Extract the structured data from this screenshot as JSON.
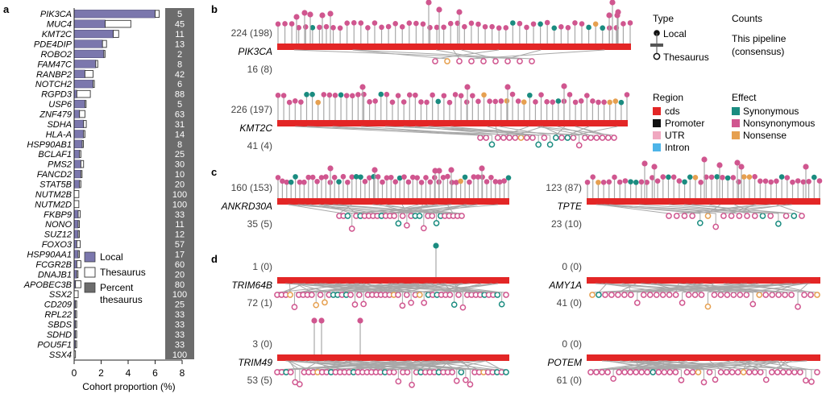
{
  "colors": {
    "local_bar": "#7b77ad",
    "percent_bg": "#6c6c6c",
    "cds": "#e32626",
    "promoter": "#111111",
    "utr": "#f0a8c0",
    "intron": "#4db4e8",
    "synonymous": "#1a8c80",
    "nonsynonymous": "#d0568f",
    "nonsense": "#e6a050",
    "stem": "#a8a8a8"
  },
  "panel_labels": {
    "a": "a",
    "b": "b",
    "c": "c",
    "d": "d"
  },
  "chart_data": [
    {
      "type": "bar",
      "panel": "a",
      "xlabel": "Cohort proportion (%)",
      "xlim": [
        0,
        8
      ],
      "xticks": [
        "0",
        "2",
        "4",
        "6",
        "8"
      ],
      "categories": [
        "PIK3CA",
        "MUC4",
        "KMT2C",
        "PDE4DIP",
        "ROBO2",
        "FAM47C",
        "RANBP2",
        "NOTCH2",
        "RGPD3",
        "USP6",
        "ZNF479",
        "SDHA",
        "HLA-A",
        "HSP90AB1",
        "BCLAF1",
        "PMS2",
        "FANCD2",
        "STAT5B",
        "NUTM2B",
        "NUTM2D",
        "FKBP9",
        "NONO",
        "SUZ12",
        "FOXO3",
        "HSP90AA1",
        "FCGR2B",
        "DNAJB1",
        "APOBEC3B",
        "SSX2",
        "CD209",
        "RPL22",
        "SBDS",
        "SDHD",
        "POU5F1",
        "SSX4"
      ],
      "series": [
        {
          "name": "Local",
          "values": [
            6.0,
            2.3,
            2.9,
            2.1,
            2.2,
            1.6,
            0.8,
            1.4,
            0.2,
            0.8,
            0.4,
            0.7,
            0.7,
            0.6,
            0.4,
            0.5,
            0.5,
            0.4,
            0.0,
            0.0,
            0.3,
            0.3,
            0.3,
            0.2,
            0.3,
            0.2,
            0.2,
            0.1,
            0.0,
            0.1,
            0.1,
            0.1,
            0.1,
            0.1,
            0.0
          ]
        },
        {
          "name": "Thesaurus",
          "values": [
            0.3,
            1.9,
            0.4,
            0.3,
            0.05,
            0.15,
            0.6,
            0.1,
            1.0,
            0.05,
            0.4,
            0.2,
            0.1,
            0.05,
            0.1,
            0.2,
            0.05,
            0.1,
            0.35,
            0.35,
            0.15,
            0.05,
            0.05,
            0.25,
            0.05,
            0.3,
            0.05,
            0.4,
            0.3,
            0.05,
            0.05,
            0.05,
            0.05,
            0.05,
            0.1
          ]
        }
      ],
      "percent_thesaurus": [
        "5",
        "45",
        "11",
        "13",
        "2",
        "8",
        "42",
        "6",
        "88",
        "5",
        "63",
        "31",
        "14",
        "8",
        "25",
        "30",
        "10",
        "20",
        "100",
        "100",
        "33",
        "11",
        "12",
        "57",
        "17",
        "60",
        "20",
        "80",
        "100",
        "25",
        "33",
        "33",
        "33",
        "33",
        "100"
      ],
      "legend": {
        "local": "Local",
        "thesaurus": "Thesaurus",
        "percent": "Percent\nthesaurus"
      }
    },
    {
      "type": "lollipop",
      "panel": "b",
      "genes": [
        {
          "gene": "PIK3CA",
          "top_count": "224 (198)",
          "bottom_count": "16 (8)"
        },
        {
          "gene": "KMT2C",
          "top_count": "226 (197)",
          "bottom_count": "41 (4)"
        }
      ]
    },
    {
      "type": "lollipop",
      "panel": "c",
      "genes": [
        {
          "gene": "ANKRD30A",
          "top_count": "160 (153)",
          "bottom_count": "35 (5)"
        },
        {
          "gene": "TPTE",
          "top_count": "123 (87)",
          "bottom_count": "23 (10)"
        }
      ]
    },
    {
      "type": "lollipop",
      "panel": "d",
      "genes": [
        {
          "gene": "TRIM64B",
          "top_count": "1 (0)",
          "bottom_count": "72 (1)"
        },
        {
          "gene": "AMY1A",
          "top_count": "0 (0)",
          "bottom_count": "41 (0)"
        },
        {
          "gene": "TRIM49",
          "top_count": "3 (0)",
          "bottom_count": "53 (5)"
        },
        {
          "gene": "POTEM",
          "top_count": "0 (0)",
          "bottom_count": "61 (0)"
        }
      ]
    }
  ],
  "legend": {
    "type_title": "Type",
    "counts_title": "Counts",
    "local": "Local",
    "thesaurus": "Thesaurus",
    "counts_line1": "This pipeline",
    "counts_line2": "(consensus)",
    "region_title": "Region",
    "region_items": [
      "cds",
      "Promoter",
      "UTR",
      "Intron"
    ],
    "effect_title": "Effect",
    "effect_items": [
      "Synonymous",
      "Nonsynonymous",
      "Nonsense"
    ]
  }
}
